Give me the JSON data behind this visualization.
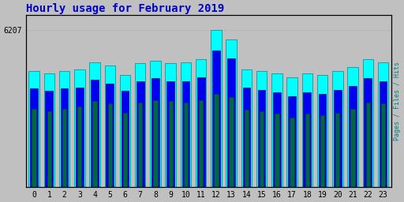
{
  "title": "Hourly usage for February 2019",
  "title_color": "#0000cc",
  "title_fontsize": 10,
  "ylabel_right": "Pages / Files / Hits",
  "ylabel_right_color": "#008080",
  "hours": [
    0,
    1,
    2,
    3,
    4,
    5,
    6,
    7,
    8,
    9,
    10,
    11,
    12,
    13,
    14,
    15,
    16,
    17,
    18,
    19,
    20,
    21,
    22,
    23
  ],
  "pages": [
    4600,
    4500,
    4600,
    4650,
    4950,
    4800,
    4450,
    4900,
    5000,
    4900,
    4950,
    5050,
    6207,
    5850,
    4650,
    4600,
    4500,
    4350,
    4500,
    4450,
    4600,
    4750,
    5050,
    4950
  ],
  "files": [
    3900,
    3800,
    3900,
    3950,
    4250,
    4100,
    3800,
    4200,
    4300,
    4200,
    4200,
    4350,
    5400,
    5100,
    3950,
    3850,
    3750,
    3600,
    3750,
    3700,
    3850,
    4000,
    4300,
    4200
  ],
  "hits": [
    3100,
    3000,
    3100,
    3200,
    3400,
    3300,
    2950,
    3350,
    3450,
    3400,
    3350,
    3450,
    3700,
    3550,
    3050,
    3000,
    2900,
    2750,
    2900,
    2850,
    2950,
    3100,
    3350,
    3300
  ],
  "pages_color": "#00ffff",
  "files_color": "#0000ee",
  "hits_color": "#006644",
  "pages_edge": "#008888",
  "files_edge": "#000088",
  "hits_edge": "#004433",
  "background_color": "#c0c0c0",
  "plot_bg_color": "#c0c0c0",
  "bar_width": 0.7,
  "ylim_max": 6800,
  "ytick_val": 6207,
  "ytick_label": "6207",
  "ytick_fontsize": 7,
  "xtick_fontsize": 7,
  "border_color": "#000000",
  "grid_color": "#b0b0b0",
  "xlim_left": -0.55,
  "xlim_right": 23.55
}
